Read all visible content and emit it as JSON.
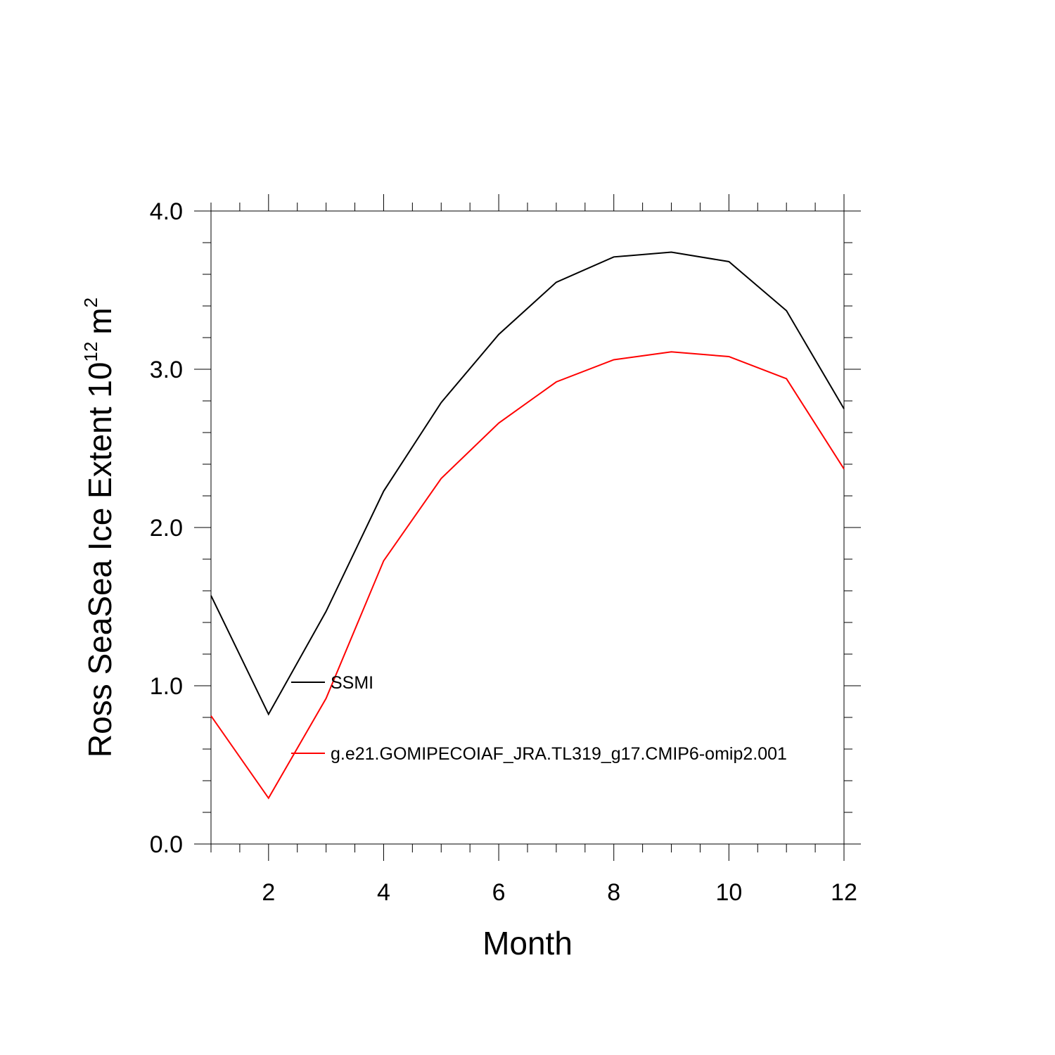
{
  "chart_data": {
    "type": "line",
    "xlabel": "Month",
    "ylabel": {
      "text": "Ross SeaSea Ice Extent 10",
      "exponent": "12",
      "unit": "m",
      "unit_exponent": "2"
    },
    "xlim": [
      1,
      12
    ],
    "ylim": [
      0.0,
      4.0
    ],
    "xticks": [
      2,
      4,
      6,
      8,
      10,
      12
    ],
    "xtick_labels": [
      "2",
      "4",
      "6",
      "8",
      "10",
      "12"
    ],
    "yticks": [
      0.0,
      1.0,
      2.0,
      3.0,
      4.0
    ],
    "ytick_labels": [
      "0.0",
      "1.0",
      "2.0",
      "3.0",
      "4.0"
    ],
    "x": [
      1,
      2,
      3,
      4,
      5,
      6,
      7,
      8,
      9,
      10,
      11,
      12
    ],
    "series": [
      {
        "name": "SSMI",
        "color": "#000000",
        "values": [
          1.57,
          0.82,
          1.47,
          2.23,
          2.79,
          3.22,
          3.55,
          3.71,
          3.74,
          3.68,
          3.37,
          2.75
        ]
      },
      {
        "name": "g.e21.GOMIPECOIAF_JRA.TL319_g17.CMIP6-omip2.001",
        "color": "#ff0000",
        "values": [
          0.81,
          0.29,
          0.92,
          1.79,
          2.31,
          2.66,
          2.92,
          3.06,
          3.11,
          3.08,
          2.94,
          2.37
        ]
      }
    ],
    "grid": false,
    "legend_position": "inside, lower-left"
  }
}
